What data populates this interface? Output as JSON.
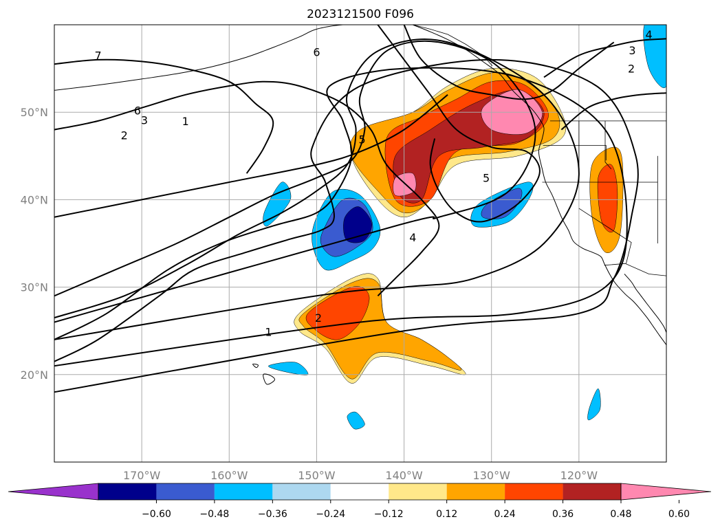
{
  "title": "2023121500 F096",
  "map": {
    "projection": "plate-carree",
    "lon_range": [
      -180,
      -110
    ],
    "lat_range": [
      10,
      60
    ],
    "gridlines": true,
    "lat_ticks": [
      {
        "value": 50,
        "label": "50°N"
      },
      {
        "value": 40,
        "label": "40°N"
      },
      {
        "value": 30,
        "label": "30°N"
      },
      {
        "value": 20,
        "label": "20°N"
      }
    ],
    "lon_ticks": [
      {
        "value": -170,
        "label": "170°W"
      },
      {
        "value": -160,
        "label": "160°W"
      },
      {
        "value": -150,
        "label": "150°W"
      },
      {
        "value": -140,
        "label": "140°W"
      },
      {
        "value": -130,
        "label": "130°W"
      },
      {
        "value": -120,
        "label": "120°W"
      }
    ]
  },
  "colorbar": {
    "orientation": "horizontal",
    "extend": "both",
    "tick_labels": [
      "−0.60",
      "−0.48",
      "−0.36",
      "−0.24",
      "−0.12",
      "0.12",
      "0.24",
      "0.36",
      "0.48",
      "0.60"
    ],
    "colors": [
      "#9932cc",
      "#00008b",
      "#3a5bd0",
      "#00bfff",
      "#add8f0",
      "#ffffff",
      "#ffe88a",
      "#ffa500",
      "#ff4500",
      "#b22222",
      "#ff88b0"
    ]
  },
  "contour_labels": [
    {
      "text": "7",
      "lon": -175,
      "lat": 56.5
    },
    {
      "text": "6",
      "lon": -170.5,
      "lat": 50.2
    },
    {
      "text": "3",
      "lon": -169.7,
      "lat": 49.1
    },
    {
      "text": "2",
      "lon": -172.0,
      "lat": 47.4
    },
    {
      "text": "1",
      "lon": -165.0,
      "lat": 49.0
    },
    {
      "text": "6",
      "lon": -150.0,
      "lat": 56.9
    },
    {
      "text": "5",
      "lon": -144.8,
      "lat": 46.9
    },
    {
      "text": "4",
      "lon": -139.0,
      "lat": 35.7
    },
    {
      "text": "5",
      "lon": -130.6,
      "lat": 42.5
    },
    {
      "text": "2",
      "lon": -149.8,
      "lat": 26.5
    },
    {
      "text": "1",
      "lon": -155.5,
      "lat": 24.9
    },
    {
      "text": "3",
      "lon": -113.9,
      "lat": 57.1
    },
    {
      "text": "2",
      "lon": -114.0,
      "lat": 55.0
    },
    {
      "text": "4",
      "lon": -112.0,
      "lat": 58.9
    }
  ],
  "shaded_regions": [
    {
      "level": "0.12",
      "color": "#ffe88a",
      "lon": [
        -144,
        -139,
        -135,
        -130,
        -125,
        -122,
        -122,
        -127,
        -134,
        -137,
        -140,
        -143,
        -146
      ],
      "lat": [
        48,
        50,
        53,
        55,
        54,
        50,
        47,
        45,
        44,
        40,
        38,
        40,
        45
      ]
    },
    {
      "level": "0.24",
      "color": "#ffa500",
      "lon": [
        -145,
        -139,
        -135,
        -130,
        -126,
        -122.5,
        -123,
        -128,
        -135,
        -137,
        -140,
        -143,
        -146
      ],
      "lat": [
        48,
        50,
        52.5,
        54.5,
        53.5,
        50,
        47,
        45.5,
        44.5,
        40,
        38.5,
        41,
        45
      ]
    },
    {
      "level": "0.36",
      "color": "#ff4500",
      "lon": [
        -142,
        -138,
        -134,
        -130,
        -126,
        -123.5,
        -127,
        -134,
        -137,
        -141
      ],
      "lat": [
        47,
        49.5,
        51.5,
        53.5,
        53,
        49.5,
        46.5,
        45.5,
        40,
        40
      ]
    },
    {
      "level": "0.48",
      "color": "#b22222",
      "lon": [
        -141,
        -137,
        -132,
        -127,
        -124,
        -126,
        -131,
        -136,
        -138,
        -140.5
      ],
      "lat": [
        45,
        48,
        51,
        52.5,
        50,
        47,
        46,
        45,
        40,
        40.5
      ]
    },
    {
      "level": "0.60",
      "color": "#ff88b0",
      "lon": [
        -131,
        -127,
        -124.2,
        -126,
        -130
      ],
      "lat": [
        50.5,
        52.6,
        50,
        47.6,
        48
      ]
    },
    {
      "level": "0.60",
      "color": "#ff88b0",
      "lon": [
        -141,
        -139,
        -138.8,
        -141
      ],
      "lat": [
        42.5,
        43,
        41,
        40.5
      ]
    },
    {
      "level": "0.12",
      "color": "#ffe88a",
      "lon": [
        -152,
        -146,
        -143,
        -142,
        -138,
        -135,
        -133,
        -137,
        -143,
        -146,
        -149,
        -152
      ],
      "lat": [
        27,
        31,
        31,
        26,
        24,
        22,
        20,
        21,
        22,
        19,
        23,
        25
      ]
    },
    {
      "level": "0.24",
      "color": "#ffa500",
      "lon": [
        -151.5,
        -146,
        -143,
        -142,
        -138,
        -135,
        -133.5,
        -137,
        -143,
        -146,
        -149,
        -151.5
      ],
      "lat": [
        27,
        30.5,
        30.5,
        26,
        24,
        22,
        20.5,
        21.5,
        22.5,
        19.5,
        23.5,
        25.5
      ]
    },
    {
      "level": "0.36",
      "color": "#ff4500",
      "lon": [
        -151,
        -146,
        -144,
        -145,
        -147.5,
        -150
      ],
      "lat": [
        27,
        30,
        29,
        26,
        24,
        25
      ]
    },
    {
      "level": "0.24",
      "color": "#ffa500",
      "lon": [
        -118.5,
        -116,
        -115,
        -115.3,
        -117,
        -118.5
      ],
      "lat": [
        44,
        46,
        44,
        36,
        34,
        38
      ]
    },
    {
      "level": "0.36",
      "color": "#ff4500",
      "lon": [
        -117.8,
        -116.3,
        -115.6,
        -116,
        -117.4
      ],
      "lat": [
        42.5,
        44,
        41,
        36.5,
        37.5
      ]
    },
    {
      "level": "-0.24",
      "color": "#00bfff",
      "lon": [
        -150,
        -148,
        -145,
        -142.8,
        -143.5,
        -146,
        -149,
        -150.5
      ],
      "lat": [
        38,
        41,
        40.5,
        37,
        34.5,
        33,
        32,
        35
      ]
    },
    {
      "level": "-0.36",
      "color": "#3a5bd0",
      "lon": [
        -149,
        -147,
        -144.6,
        -143.6,
        -145.5,
        -148,
        -149.5
      ],
      "lat": [
        37,
        40,
        39.5,
        36.5,
        34.5,
        33.5,
        35
      ]
    },
    {
      "level": "-0.48",
      "color": "#00008b",
      "lon": [
        -146.8,
        -145.2,
        -143.7,
        -144.6,
        -146.6
      ],
      "lat": [
        37.9,
        39.2,
        37.3,
        35.3,
        35.4
      ]
    },
    {
      "level": "-0.24",
      "color": "#00bfff",
      "lon": [
        -131.5,
        -126,
        -125.5,
        -128,
        -132
      ],
      "lat": [
        39.5,
        42,
        40.5,
        37.5,
        37
      ]
    },
    {
      "level": "-0.36",
      "color": "#3a5bd0",
      "lon": [
        -130.5,
        -127,
        -126.7,
        -128.5,
        -131
      ],
      "lat": [
        39.5,
        41.3,
        40,
        38,
        38
      ]
    },
    {
      "level": "-0.24",
      "color": "#00bfff",
      "lon": [
        -156,
        -154,
        -153,
        -155.6
      ],
      "lat": [
        38.5,
        42,
        40,
        37
      ]
    },
    {
      "level": "-0.24",
      "color": "#00bfff",
      "lon": [
        -155.5,
        -152.4,
        -151,
        -153.5
      ],
      "lat": [
        21,
        21.4,
        20,
        20.3
      ]
    },
    {
      "level": "-0.24",
      "color": "#00bfff",
      "lon": [
        -146.5,
        -145.5,
        -144.5,
        -145.7
      ],
      "lat": [
        15.2,
        15.7,
        14.3,
        13.8
      ]
    },
    {
      "level": "-0.24",
      "color": "#00bfff",
      "lon": [
        -118.8,
        -117.8,
        -117.6,
        -118.9
      ],
      "lat": [
        16.2,
        18.4,
        16.0,
        14.8
      ]
    },
    {
      "level": "-0.24",
      "color": "#00bfff",
      "lon": [
        -112.5,
        -110,
        -110,
        -112
      ],
      "lat": [
        60,
        60,
        53,
        55
      ]
    }
  ],
  "contour_lines": [
    {
      "lon": [
        -180,
        -175,
        -168,
        -164,
        -158,
        -153,
        -149.5,
        -148,
        -149,
        -150.5,
        -145,
        -130,
        -118,
        -113.5,
        -114,
        -116,
        -120,
        -140,
        -180
      ],
      "lat": [
        21.5,
        24,
        29,
        32,
        34,
        35.5,
        36.5,
        38,
        42,
        46,
        53,
        56,
        53,
        45,
        38,
        31,
        27,
        25,
        18
      ]
    },
    {
      "lon": [
        -180,
        -174,
        -167,
        -161,
        -155,
        -150,
        -147.6,
        -146,
        -147,
        -148.5,
        -140,
        -127,
        -117,
        -114.5,
        -117,
        -127,
        -145,
        -180
      ],
      "lat": [
        24,
        27,
        32,
        35,
        37,
        38.5,
        41,
        45,
        49,
        53,
        55,
        54,
        48,
        37,
        30,
        27,
        26,
        21
      ]
    },
    {
      "lon": [
        -180,
        -172,
        -165,
        -159,
        -154,
        -150,
        -146.5,
        -145.5,
        -146.5,
        -143,
        -135,
        -124,
        -120,
        -124,
        -132,
        -140,
        -150,
        -180
      ],
      "lat": [
        26.5,
        29,
        32.5,
        36,
        38.5,
        41,
        44,
        48,
        52,
        57,
        58,
        52,
        43,
        35,
        31,
        30,
        29,
        24
      ]
    },
    {
      "lon": [
        -180,
        -173,
        -166,
        -160,
        -155,
        -150,
        -146,
        -144.5,
        -145,
        -142,
        -136,
        -129,
        -125,
        -128,
        -136,
        -141,
        -180
      ],
      "lat": [
        29,
        32,
        35,
        38,
        40.5,
        42.5,
        44.5,
        48,
        52,
        57,
        58,
        55,
        48,
        41,
        38,
        37,
        26
      ]
    },
    {
      "lon": [
        -180,
        -175,
        -170,
        -165,
        -160,
        -156,
        -152,
        -147,
        -143.8,
        -142,
        -138,
        -136,
        -138,
        -141,
        -143
      ],
      "lat": [
        48,
        49,
        50.5,
        52,
        53,
        53.5,
        53,
        51,
        48,
        44,
        40,
        37,
        34,
        31,
        29
      ]
    },
    {
      "lon": [
        -143,
        -140,
        -137,
        -134,
        -130,
        -126,
        -124.5,
        -127,
        -131,
        -134,
        -136,
        -137,
        -136.5
      ],
      "lat": [
        60,
        56,
        52,
        48,
        46,
        45.5,
        43,
        39.5,
        37.5,
        38.5,
        41,
        44,
        47
      ]
    },
    {
      "lon": [
        -180,
        -175,
        -170,
        -165,
        -160,
        -157,
        -155,
        -156,
        -158
      ],
      "lat": [
        55.5,
        56,
        55.8,
        55,
        53.5,
        51,
        49,
        46,
        43
      ]
    },
    {
      "lon": [
        -140,
        -138,
        -134,
        -130,
        -126,
        -123,
        -120,
        -116
      ],
      "lat": [
        60,
        56,
        53,
        52,
        51.5,
        52.5,
        55,
        58
      ]
    },
    {
      "lon": [
        -124,
        -120,
        -116,
        -113,
        -110
      ],
      "lat": [
        54,
        56.5,
        57.6,
        58.2,
        58.4
      ]
    },
    {
      "lon": [
        -122,
        -119,
        -116,
        -113,
        -110
      ],
      "lat": [
        48,
        50.5,
        51.5,
        52,
        52.2
      ]
    },
    {
      "lon": [
        -180,
        -170,
        -160,
        -150,
        -145,
        -140,
        -135
      ],
      "lat": [
        38,
        40,
        42,
        44,
        45.5,
        48,
        52
      ]
    }
  ],
  "coastlines": [
    {
      "lon": [
        -139,
        -137,
        -135,
        -133,
        -131,
        -129,
        -127.5,
        -125.5,
        -124.5,
        -124,
        -124.2,
        -124.6,
        -124.2,
        -123.8,
        -123,
        -122,
        -121.2,
        -120.6,
        -119.5,
        -118.5,
        -117.5,
        -117.1,
        -116.5,
        -115.8,
        -114.7,
        -113.8,
        -113,
        -112.2,
        -111.5,
        -110.8,
        -110
      ],
      "lat": [
        60,
        59.2,
        58.3,
        57.2,
        55.8,
        54.3,
        52.4,
        50.5,
        49.2,
        48.2,
        47,
        45.5,
        43.5,
        42,
        40.4,
        38,
        36.5,
        35.2,
        34.4,
        34,
        33.5,
        32.7,
        31.5,
        30.4,
        29.2,
        28.4,
        27.5,
        26.5,
        25.5,
        24.5,
        23.4
      ]
    },
    {
      "lon": [
        -114.8,
        -114,
        -113.5,
        -112.9,
        -112.3,
        -111.6,
        -110.9,
        -110.3,
        -110
      ],
      "lat": [
        31.5,
        30.6,
        29.8,
        29,
        28.2,
        27.3,
        26.4,
        25.5,
        24.8
      ]
    },
    {
      "lon": [
        -180,
        -175,
        -170,
        -166,
        -162,
        -158,
        -155,
        -152,
        -150,
        -147,
        -144
      ],
      "lat": [
        52.5,
        53.1,
        53.8,
        54.4,
        55.2,
        56.3,
        57.4,
        58.6,
        59.5,
        60,
        60
      ]
    },
    {
      "lon": [
        -156.1,
        -155.3,
        -154.8,
        -155.7,
        -156.1
      ],
      "lat": [
        20,
        19.9,
        19.4,
        18.9,
        20
      ]
    },
    {
      "lon": [
        -157.3,
        -156.7,
        -156.9,
        -157.3
      ],
      "lat": [
        21.2,
        21.1,
        20.8,
        21.2
      ]
    }
  ],
  "borders": [
    {
      "lon": [
        -123.3,
        -118,
        -115,
        -112,
        -110
      ],
      "lat": [
        49,
        49,
        49,
        49,
        49
      ]
    },
    {
      "lon": [
        -117.1,
        -114.7,
        -112,
        -110
      ],
      "lat": [
        32.5,
        32.7,
        31.5,
        31.3
      ]
    },
    {
      "lon": [
        -141,
        -141
      ],
      "lat": [
        60,
        60
      ]
    },
    {
      "lon": [
        -120,
        -120
      ],
      "lat": [
        49,
        42
      ]
    },
    {
      "lon": [
        -124.2,
        -117,
        -111
      ],
      "lat": [
        42,
        42,
        42
      ]
    },
    {
      "lon": [
        -124.1,
        -116.9,
        -116.9
      ],
      "lat": [
        46.2,
        46.2,
        44.5
      ]
    },
    {
      "lon": [
        -120,
        -114,
        -114.6
      ],
      "lat": [
        39,
        35.1,
        32.7
      ]
    },
    {
      "lon": [
        -117,
        -117,
        -116.3
      ],
      "lat": [
        49,
        44.3,
        43.5
      ]
    },
    {
      "lon": [
        -111,
        -111
      ],
      "lat": [
        45,
        35
      ]
    },
    {
      "lon": [
        -129.9,
        -131,
        -133,
        -135,
        -137,
        -139,
        -141
      ],
      "lat": [
        55.3,
        56.5,
        57.8,
        58.9,
        59.5,
        60,
        60
      ]
    }
  ]
}
